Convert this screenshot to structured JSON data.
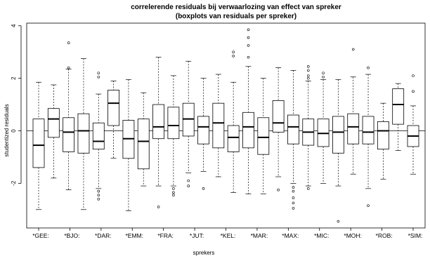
{
  "chart_data": {
    "type": "box",
    "title": "correlerende residuals bij verwaarlozing van effect van spreker",
    "subtitle": "(boxplots van residuals per spreker)",
    "xlabel": "sprekers",
    "ylabel": "studentized residuals",
    "ylim": [
      -3.7,
      4.1
    ],
    "yticks": [
      -2,
      0,
      2,
      4
    ],
    "reference_line": 0,
    "categories": [
      "*GEE:",
      "*BJO:",
      "*DAR:",
      "*EMM:",
      "*FRA:",
      "*JUT:",
      "*KEL:",
      "*MAR:",
      "*MAX:",
      "*MIC:",
      "*MOH:",
      "*ROB:",
      "*SIM:"
    ],
    "boxes": [
      {
        "group": "*GEE:",
        "min": -3.0,
        "q1": -1.4,
        "median": -0.55,
        "q3": 0.45,
        "max": 1.85,
        "outliers": []
      },
      {
        "group": "*BJO:",
        "min": -1.8,
        "q1": -0.25,
        "median": 0.45,
        "q3": 0.85,
        "max": 1.75,
        "outliers": []
      },
      {
        "group": "*BJO:",
        "min": -2.25,
        "q1": -0.8,
        "median": -0.05,
        "q3": 0.5,
        "max": 2.35,
        "outliers": [
          2.4,
          3.35
        ]
      },
      {
        "group": "*DAR:",
        "min": -3.0,
        "q1": -0.85,
        "median": 0.0,
        "q3": 0.65,
        "max": 2.75,
        "outliers": []
      },
      {
        "group": "*DAR:",
        "min": -2.2,
        "q1": -0.7,
        "median": -0.4,
        "q3": 0.3,
        "max": 1.4,
        "outliers": [
          -2.3,
          -2.45,
          -2.6,
          2.05,
          2.2
        ]
      },
      {
        "group": "*EMM:",
        "min": -1.05,
        "q1": 0.2,
        "median": 1.05,
        "q3": 1.55,
        "max": 1.9,
        "outliers": []
      },
      {
        "group": "*EMM:",
        "min": -3.05,
        "q1": -1.05,
        "median": -0.3,
        "q3": 0.4,
        "max": 1.95,
        "outliers": []
      },
      {
        "group": "*FRA:",
        "min": -2.1,
        "q1": -1.45,
        "median": -0.4,
        "q3": 0.45,
        "max": 1.45,
        "outliers": []
      },
      {
        "group": "*FRA:",
        "min": -2.1,
        "q1": -0.3,
        "median": 0.15,
        "q3": 1.0,
        "max": 2.8,
        "outliers": [
          -2.9
        ]
      },
      {
        "group": "*JUT:",
        "min": -2.1,
        "q1": -0.3,
        "median": 0.2,
        "q3": 0.9,
        "max": 2.1,
        "outliers": [
          -2.2,
          -2.35,
          -2.45
        ]
      },
      {
        "group": "*JUT:",
        "min": -1.6,
        "q1": -0.2,
        "median": 0.45,
        "q3": 1.05,
        "max": 2.65,
        "outliers": [
          -1.9,
          -2.1
        ]
      },
      {
        "group": "*KEL:",
        "min": -1.55,
        "q1": -0.5,
        "median": 0.15,
        "q3": 0.55,
        "max": 2.0,
        "outliers": [
          -2.2
        ]
      },
      {
        "group": "*KEL:",
        "min": -1.75,
        "q1": -0.65,
        "median": 0.3,
        "q3": 1.05,
        "max": 2.15,
        "outliers": []
      },
      {
        "group": "*MAR:",
        "min": -2.35,
        "q1": -0.8,
        "median": -0.25,
        "q3": 0.2,
        "max": 1.85,
        "outliers": [
          2.85,
          3.0
        ]
      },
      {
        "group": "*MAR:",
        "min": -2.4,
        "q1": -0.65,
        "median": 0.15,
        "q3": 0.7,
        "max": 2.45,
        "outliers": [
          2.8,
          3.25,
          3.55,
          3.85
        ]
      },
      {
        "group": "*MAX:",
        "min": -2.4,
        "q1": -0.9,
        "median": -0.25,
        "q3": 0.5,
        "max": 2.0,
        "outliers": []
      },
      {
        "group": "*MAX:",
        "min": -1.75,
        "q1": -0.05,
        "median": 0.3,
        "q3": 1.15,
        "max": 2.4,
        "outliers": [
          -2.25
        ]
      },
      {
        "group": "*MIC:",
        "min": -2.0,
        "q1": -0.5,
        "median": 0.15,
        "q3": 0.6,
        "max": 2.3,
        "outliers": [
          -2.15,
          -2.3,
          -2.55,
          -2.75,
          -2.95
        ]
      },
      {
        "group": "*MIC:",
        "min": -2.1,
        "q1": -0.55,
        "median": -0.05,
        "q3": 0.45,
        "max": 1.9,
        "outliers": [
          -2.2,
          2.0,
          2.1,
          2.3,
          2.45
        ]
      },
      {
        "group": "*MOH:",
        "min": -2.0,
        "q1": -0.6,
        "median": -0.1,
        "q3": 0.45,
        "max": 1.95,
        "outliers": [
          2.05,
          2.2
        ]
      },
      {
        "group": "*MOH:",
        "min": -2.1,
        "q1": -0.85,
        "median": -0.05,
        "q3": 0.55,
        "max": 1.95,
        "outliers": [
          -3.45
        ]
      },
      {
        "group": "*ROB:",
        "min": -1.65,
        "q1": -0.5,
        "median": 0.15,
        "q3": 0.65,
        "max": 2.05,
        "outliers": [
          3.1
        ]
      },
      {
        "group": "*ROB:",
        "min": -2.2,
        "q1": -0.5,
        "median": -0.05,
        "q3": 0.55,
        "max": 2.15,
        "outliers": [
          2.4,
          -2.85
        ]
      },
      {
        "group": "*SIM:",
        "min": -1.85,
        "q1": -0.7,
        "median": 0.0,
        "q3": 0.35,
        "max": 1.05,
        "outliers": []
      },
      {
        "group": "*SIM:",
        "min": -0.75,
        "q1": 0.25,
        "median": 1.0,
        "q3": 1.6,
        "max": 1.8,
        "outliers": []
      },
      {
        "group": "*SIM:",
        "min": -1.65,
        "q1": -0.6,
        "median": -0.2,
        "q3": 0.2,
        "max": 0.95,
        "outliers": [
          1.5,
          2.1
        ]
      }
    ],
    "grid": false,
    "legend": "none",
    "colors": {
      "box_fill": "#ffffff",
      "box_stroke": "#000000",
      "median": "#000000"
    }
  }
}
